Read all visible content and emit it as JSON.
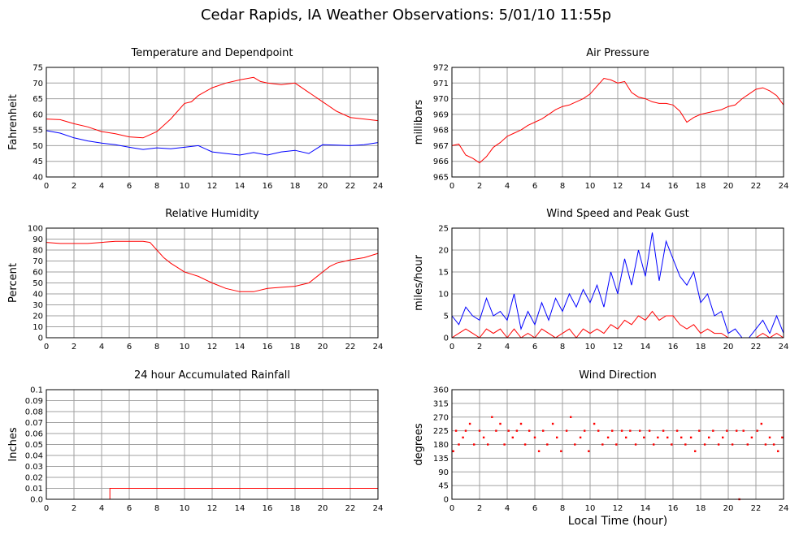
{
  "title": "Cedar Rapids, IA Weather Observations: 5/01/10 11:55p",
  "xlabel": "Local Time (hour)",
  "x_ticks": [
    "0",
    "2",
    "4",
    "6",
    "8",
    "10",
    "12",
    "14",
    "16",
    "18",
    "20",
    "22",
    "24"
  ],
  "colors": {
    "red": "#ff0000",
    "blue": "#0000ff",
    "grid": "#a0a0a0"
  },
  "chart_data": [
    {
      "type": "line",
      "title": "Temperature and Dependpoint",
      "ylabel": "Fahrenheit",
      "ylim": [
        40,
        75
      ],
      "yticks": [
        "40",
        "45",
        "50",
        "55",
        "60",
        "65",
        "70",
        "75"
      ],
      "xlim": [
        0,
        24
      ],
      "series": [
        {
          "color": "#ff0000",
          "x": [
            0,
            1,
            2,
            3,
            4,
            5,
            6,
            7,
            8,
            9,
            10,
            10.5,
            11,
            12,
            13,
            14,
            15,
            15.5,
            16,
            17,
            18,
            19,
            20,
            21,
            22,
            23,
            24
          ],
          "y": [
            58.5,
            58.3,
            57.0,
            56.0,
            54.5,
            53.8,
            52.8,
            52.5,
            54.5,
            58.5,
            63.5,
            64.0,
            66.0,
            68.5,
            70.0,
            71.0,
            71.8,
            70.5,
            70.0,
            69.5,
            70.0,
            67.0,
            64.0,
            61.0,
            59.0,
            58.5,
            58.0
          ]
        },
        {
          "color": "#0000ff",
          "x": [
            0,
            1,
            2,
            3,
            4,
            5,
            6,
            7,
            8,
            9,
            10,
            11,
            12,
            13,
            14,
            15,
            16,
            17,
            18,
            19,
            20,
            21,
            22,
            23,
            24
          ],
          "y": [
            54.8,
            54.0,
            52.5,
            51.5,
            50.8,
            50.3,
            49.5,
            48.8,
            49.3,
            49.0,
            49.5,
            50.0,
            48.0,
            47.5,
            47.0,
            47.8,
            47.0,
            48.0,
            48.5,
            47.5,
            50.3,
            50.2,
            50.0,
            50.3,
            51.0
          ]
        }
      ]
    },
    {
      "type": "line",
      "title": "Air Pressure",
      "ylabel": "millibars",
      "ylim": [
        965,
        972
      ],
      "yticks": [
        "965",
        "966",
        "967",
        "968",
        "969",
        "970",
        "971",
        "972"
      ],
      "xlim": [
        0,
        24
      ],
      "series": [
        {
          "color": "#ff0000",
          "x": [
            0,
            0.5,
            1,
            1.5,
            2,
            2.5,
            3,
            3.5,
            4,
            4.5,
            5,
            5.5,
            6,
            6.5,
            7,
            7.5,
            8,
            8.5,
            9,
            9.5,
            10,
            10.5,
            11,
            11.5,
            12,
            12.5,
            13,
            13.5,
            14,
            14.5,
            15,
            15.5,
            16,
            16.5,
            17,
            17.5,
            18,
            18.5,
            19,
            19.5,
            20,
            20.5,
            21,
            21.5,
            22,
            22.5,
            23,
            23.5,
            24
          ],
          "y": [
            967.0,
            967.1,
            966.4,
            966.2,
            965.9,
            966.3,
            966.9,
            967.2,
            967.6,
            967.8,
            968.0,
            968.3,
            968.5,
            968.7,
            969.0,
            969.3,
            969.5,
            969.6,
            969.8,
            970.0,
            970.3,
            970.8,
            971.3,
            971.2,
            971.0,
            971.1,
            970.4,
            970.1,
            970.0,
            969.8,
            969.7,
            969.7,
            969.6,
            969.2,
            968.5,
            968.8,
            969.0,
            969.1,
            969.2,
            969.3,
            969.5,
            969.6,
            970.0,
            970.3,
            970.6,
            970.7,
            970.5,
            970.2,
            969.6
          ]
        }
      ]
    },
    {
      "type": "line",
      "title": "Relative Humidity",
      "ylabel": "Percent",
      "ylim": [
        0,
        100
      ],
      "yticks": [
        "0",
        "10",
        "20",
        "30",
        "40",
        "50",
        "60",
        "70",
        "80",
        "90",
        "100"
      ],
      "xlim": [
        0,
        24
      ],
      "series": [
        {
          "color": "#ff0000",
          "x": [
            0,
            1,
            2,
            3,
            4,
            5,
            6,
            7,
            7.5,
            8,
            8.5,
            9,
            9.5,
            10,
            10.5,
            11,
            12,
            13,
            14,
            15,
            16,
            17,
            18,
            19,
            19.5,
            20,
            20.5,
            21,
            22,
            23,
            24
          ],
          "y": [
            87,
            86,
            86,
            86,
            87,
            88,
            88,
            88,
            87,
            80,
            73,
            68,
            64,
            60,
            58,
            56,
            50,
            45,
            42,
            42,
            45,
            46,
            47,
            50,
            55,
            60,
            65,
            68,
            71,
            73,
            77
          ]
        }
      ]
    },
    {
      "type": "line",
      "title": "Wind Speed and Peak Gust",
      "ylabel": "miles/hour",
      "ylim": [
        0,
        25
      ],
      "yticks": [
        "0",
        "5",
        "10",
        "15",
        "20",
        "25"
      ],
      "xlim": [
        0,
        24
      ],
      "series": [
        {
          "color": "#0000ff",
          "x": [
            0,
            0.5,
            1,
            1.5,
            2,
            2.5,
            3,
            3.5,
            4,
            4.5,
            5,
            5.5,
            6,
            6.5,
            7,
            7.5,
            8,
            8.5,
            9,
            9.5,
            10,
            10.5,
            11,
            11.5,
            12,
            12.5,
            13,
            13.5,
            14,
            14.5,
            15,
            15.5,
            16,
            16.5,
            17,
            17.5,
            18,
            18.5,
            19,
            19.5,
            20,
            20.5,
            21,
            21.5,
            22,
            22.5,
            23,
            23.5,
            24
          ],
          "y": [
            5,
            3,
            7,
            5,
            4,
            9,
            5,
            6,
            4,
            10,
            2,
            6,
            3,
            8,
            4,
            9,
            6,
            10,
            7,
            11,
            8,
            12,
            7,
            15,
            10,
            18,
            12,
            20,
            14,
            24,
            13,
            22,
            18,
            14,
            12,
            15,
            8,
            10,
            5,
            6,
            1,
            2,
            0,
            0,
            2,
            4,
            1,
            5,
            1
          ]
        },
        {
          "color": "#ff0000",
          "x": [
            0,
            0.5,
            1,
            1.5,
            2,
            2.5,
            3,
            3.5,
            4,
            4.5,
            5,
            5.5,
            6,
            6.5,
            7,
            7.5,
            8,
            8.5,
            9,
            9.5,
            10,
            10.5,
            11,
            11.5,
            12,
            12.5,
            13,
            13.5,
            14,
            14.5,
            15,
            15.5,
            16,
            16.5,
            17,
            17.5,
            18,
            18.5,
            19,
            19.5,
            20,
            20.5,
            21,
            21.5,
            22,
            22.5,
            23,
            23.5,
            24
          ],
          "y": [
            0,
            1,
            2,
            1,
            0,
            2,
            1,
            2,
            0,
            2,
            0,
            1,
            0,
            2,
            1,
            0,
            1,
            2,
            0,
            2,
            1,
            2,
            1,
            3,
            2,
            4,
            3,
            5,
            4,
            6,
            4,
            5,
            5,
            3,
            2,
            3,
            1,
            2,
            1,
            1,
            0,
            0,
            0,
            0,
            0,
            1,
            0,
            1,
            0
          ]
        }
      ]
    },
    {
      "type": "line",
      "title": "24 hour Accumulated Rainfall",
      "ylabel": "Inches",
      "ylim": [
        0,
        0.1
      ],
      "yticks": [
        "0.0",
        "0.01",
        "0.02",
        "0.03",
        "0.04",
        "0.05",
        "0.06",
        "0.07",
        "0.08",
        "0.09",
        "0.1"
      ],
      "xlim": [
        0,
        24
      ],
      "series": [
        {
          "color": "#ff0000",
          "x": [
            0,
            4.6,
            4.6,
            24
          ],
          "y": [
            0,
            0,
            0.01,
            0.01
          ]
        }
      ]
    },
    {
      "type": "scatter",
      "title": "Wind Direction",
      "ylabel": "degrees",
      "ylim": [
        0,
        360
      ],
      "yticks": [
        "0",
        "45",
        "90",
        "135",
        "180",
        "225",
        "270",
        "315",
        "360"
      ],
      "xlim": [
        0,
        24
      ],
      "series": [
        {
          "color": "#ff0000",
          "x": [
            0.1,
            0.3,
            0.5,
            0.8,
            1.0,
            1.3,
            1.6,
            2.0,
            2.3,
            2.6,
            2.9,
            3.2,
            3.5,
            3.8,
            4.1,
            4.4,
            4.7,
            5.0,
            5.3,
            5.6,
            6.0,
            6.3,
            6.6,
            6.9,
            7.3,
            7.6,
            7.9,
            8.3,
            8.6,
            8.9,
            9.3,
            9.6,
            9.9,
            10.3,
            10.6,
            10.9,
            11.3,
            11.6,
            11.9,
            12.3,
            12.6,
            12.9,
            13.3,
            13.6,
            13.9,
            14.3,
            14.6,
            14.9,
            15.3,
            15.6,
            15.9,
            16.3,
            16.6,
            16.9,
            17.3,
            17.6,
            17.9,
            18.3,
            18.6,
            18.9,
            19.3,
            19.6,
            19.9,
            20.3,
            20.6,
            20.8,
            21.1,
            21.4,
            21.7,
            22.1,
            22.4,
            22.7,
            23.0,
            23.3,
            23.6,
            23.9
          ],
          "y": [
            158,
            225,
            180,
            203,
            225,
            248,
            180,
            225,
            203,
            180,
            270,
            225,
            248,
            180,
            225,
            203,
            225,
            248,
            180,
            225,
            203,
            158,
            225,
            180,
            248,
            203,
            158,
            225,
            270,
            180,
            203,
            225,
            158,
            248,
            225,
            180,
            203,
            225,
            180,
            225,
            203,
            225,
            180,
            225,
            203,
            225,
            180,
            203,
            225,
            203,
            180,
            225,
            203,
            180,
            203,
            158,
            225,
            180,
            203,
            225,
            180,
            203,
            225,
            180,
            225,
            0,
            225,
            180,
            203,
            225,
            248,
            180,
            203,
            180,
            158,
            203
          ]
        }
      ]
    }
  ]
}
